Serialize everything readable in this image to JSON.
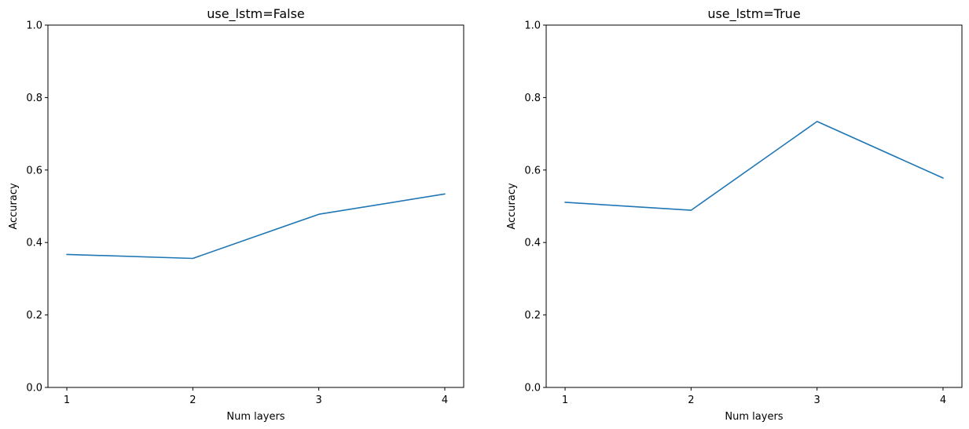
{
  "chart_data": [
    {
      "type": "line",
      "title": "use_lstm=False",
      "xlabel": "Num layers",
      "ylabel": "Accuracy",
      "x": [
        1,
        2,
        3,
        4
      ],
      "xticks": [
        "1",
        "2",
        "3",
        "4"
      ],
      "xlim": [
        0.85,
        4.15
      ],
      "ylim": [
        0.0,
        1.0
      ],
      "yticks": [
        "0.0",
        "0.2",
        "0.4",
        "0.6",
        "0.8",
        "1.0"
      ],
      "grid": false,
      "series": [
        {
          "color": "#1f77b4",
          "values": [
            0.367,
            0.356,
            0.478,
            0.534
          ]
        }
      ]
    },
    {
      "type": "line",
      "title": "use_lstm=True",
      "xlabel": "Num layers",
      "ylabel": "Accuracy",
      "x": [
        1,
        2,
        3,
        4
      ],
      "xticks": [
        "1",
        "2",
        "3",
        "4"
      ],
      "xlim": [
        0.85,
        4.15
      ],
      "ylim": [
        0.0,
        1.0
      ],
      "yticks": [
        "0.0",
        "0.2",
        "0.4",
        "0.6",
        "0.8",
        "1.0"
      ],
      "grid": false,
      "series": [
        {
          "color": "#1f77b4",
          "values": [
            0.511,
            0.489,
            0.734,
            0.578
          ]
        }
      ]
    }
  ]
}
